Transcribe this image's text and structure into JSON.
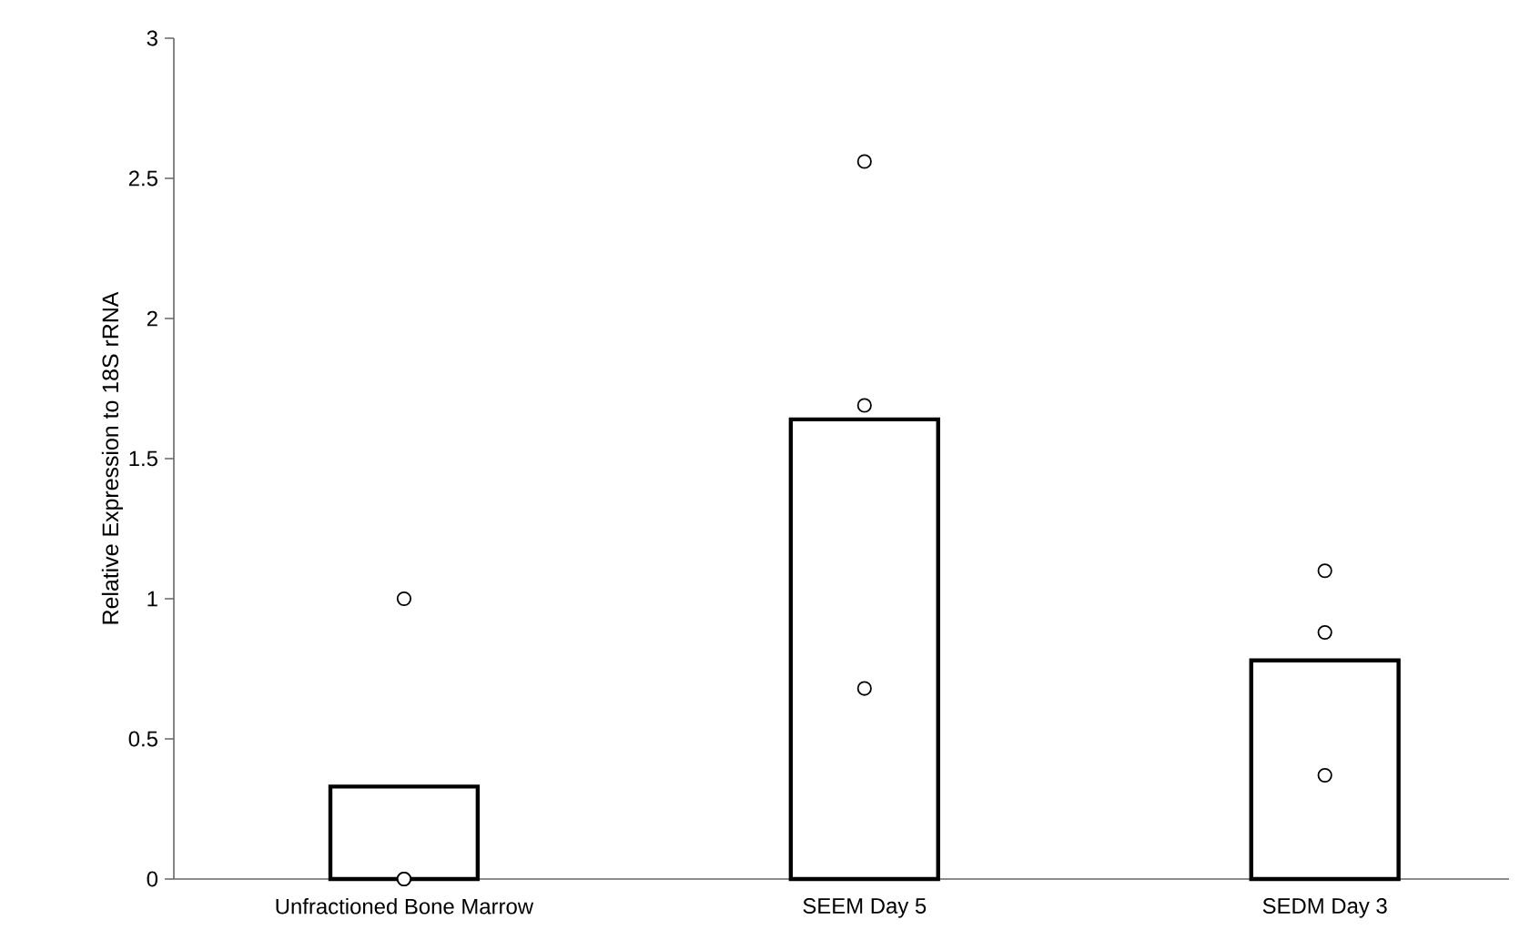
{
  "chart_data": {
    "type": "bar",
    "ylabel": "Relative Expression to 18S rRNA",
    "categories": [
      "Unfractioned Bone Marrow",
      "SEEM Day 5",
      "SEDM Day 3"
    ],
    "series": [
      {
        "color": "#ffffff",
        "values": [
          0.33,
          1.64,
          0.78
        ]
      },
      {
        "type": "scatter",
        "color": "#ffffff",
        "x": [
          "Unfractioned Bone Marrow",
          "Unfractioned Bone Marrow",
          "Unfractioned Bone Marrow",
          "SEEM Day 5",
          "SEEM Day 5",
          "SEEM Day 5",
          "SEDM Day 3",
          "SEDM Day 3",
          "SEDM Day 3"
        ],
        "values": [
          1.0,
          0,
          0,
          2.56,
          1.69,
          0.68,
          1.1,
          0.88,
          0.37
        ]
      }
    ],
    "ylim": [
      0,
      3
    ],
    "yticks": [
      0,
      0.5,
      1,
      1.5,
      2,
      2.5,
      3
    ],
    "grid": false
  }
}
